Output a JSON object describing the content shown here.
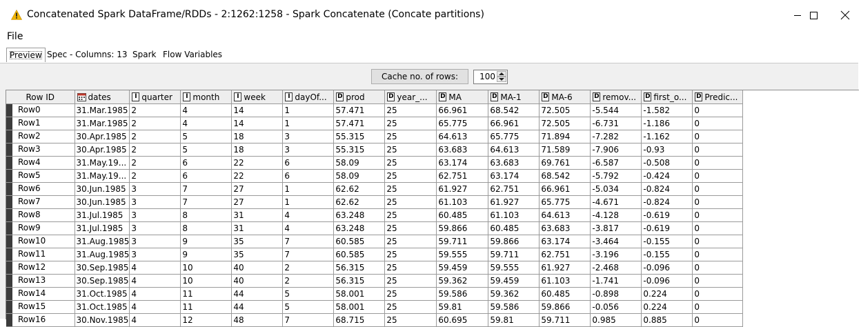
{
  "window": {
    "title": "Concatenated Spark DataFrame/RDDs - 2:1262:1258 - Spark Concatenate (Concate partitions)",
    "icon": "warning-icon",
    "warning_color": "#f0b400"
  },
  "menu": {
    "file": "File"
  },
  "tabs": [
    {
      "label": "Preview",
      "active": true
    },
    {
      "label": "Spec - Columns: 13",
      "active": false
    },
    {
      "label": "Spark",
      "active": false
    },
    {
      "label": "Flow Variables",
      "active": false
    }
  ],
  "cache": {
    "button_label": "Cache no. of rows:",
    "value": "100"
  },
  "table": {
    "columns": [
      {
        "label": "Row ID",
        "type": ""
      },
      {
        "label": "dates",
        "type": "cal"
      },
      {
        "label": "quarter",
        "type": "I"
      },
      {
        "label": "month",
        "type": "I"
      },
      {
        "label": "week",
        "type": "I"
      },
      {
        "label": "dayOf...",
        "type": "I"
      },
      {
        "label": "prod",
        "type": "D"
      },
      {
        "label": "year_...",
        "type": "D"
      },
      {
        "label": "MA",
        "type": "D"
      },
      {
        "label": "MA-1",
        "type": "D"
      },
      {
        "label": "MA-6",
        "type": "D"
      },
      {
        "label": "remov...",
        "type": "D"
      },
      {
        "label": "first_o...",
        "type": "D"
      },
      {
        "label": "Predic...",
        "type": "D"
      }
    ],
    "rows": [
      [
        "Row0",
        "31.Mar.1985",
        "2",
        "4",
        "14",
        "1",
        "57.471",
        "25",
        "66.961",
        "68.542",
        "72.505",
        "-5.544",
        "-1.582",
        "0"
      ],
      [
        "Row1",
        "31.Mar.1985",
        "2",
        "4",
        "14",
        "1",
        "57.471",
        "25",
        "65.775",
        "66.961",
        "72.505",
        "-6.731",
        "-1.186",
        "0"
      ],
      [
        "Row2",
        "30.Apr.1985",
        "2",
        "5",
        "18",
        "3",
        "55.315",
        "25",
        "64.613",
        "65.775",
        "71.894",
        "-7.282",
        "-1.162",
        "0"
      ],
      [
        "Row3",
        "30.Apr.1985",
        "2",
        "5",
        "18",
        "3",
        "55.315",
        "25",
        "63.683",
        "64.613",
        "71.589",
        "-7.906",
        "-0.93",
        "0"
      ],
      [
        "Row4",
        "31.May.19...",
        "2",
        "6",
        "22",
        "6",
        "58.09",
        "25",
        "63.174",
        "63.683",
        "69.761",
        "-6.587",
        "-0.508",
        "0"
      ],
      [
        "Row5",
        "31.May.19...",
        "2",
        "6",
        "22",
        "6",
        "58.09",
        "25",
        "62.751",
        "63.174",
        "68.542",
        "-5.792",
        "-0.424",
        "0"
      ],
      [
        "Row6",
        "30.Jun.1985",
        "3",
        "7",
        "27",
        "1",
        "62.62",
        "25",
        "61.927",
        "62.751",
        "66.961",
        "-5.034",
        "-0.824",
        "0"
      ],
      [
        "Row7",
        "30.Jun.1985",
        "3",
        "7",
        "27",
        "1",
        "62.62",
        "25",
        "61.103",
        "61.927",
        "65.775",
        "-4.671",
        "-0.824",
        "0"
      ],
      [
        "Row8",
        "31.Jul.1985",
        "3",
        "8",
        "31",
        "4",
        "63.248",
        "25",
        "60.485",
        "61.103",
        "64.613",
        "-4.128",
        "-0.619",
        "0"
      ],
      [
        "Row9",
        "31.Jul.1985",
        "3",
        "8",
        "31",
        "4",
        "63.248",
        "25",
        "59.866",
        "60.485",
        "63.683",
        "-3.817",
        "-0.619",
        "0"
      ],
      [
        "Row10",
        "31.Aug.1985",
        "3",
        "9",
        "35",
        "7",
        "60.585",
        "25",
        "59.711",
        "59.866",
        "63.174",
        "-3.464",
        "-0.155",
        "0"
      ],
      [
        "Row11",
        "31.Aug.1985",
        "3",
        "9",
        "35",
        "7",
        "60.585",
        "25",
        "59.555",
        "59.711",
        "62.751",
        "-3.196",
        "-0.155",
        "0"
      ],
      [
        "Row12",
        "30.Sep.1985",
        "4",
        "10",
        "40",
        "2",
        "56.315",
        "25",
        "59.459",
        "59.555",
        "61.927",
        "-2.468",
        "-0.096",
        "0"
      ],
      [
        "Row13",
        "30.Sep.1985",
        "4",
        "10",
        "40",
        "2",
        "56.315",
        "25",
        "59.362",
        "59.459",
        "61.103",
        "-1.741",
        "-0.096",
        "0"
      ],
      [
        "Row14",
        "31.Oct.1985",
        "4",
        "11",
        "44",
        "5",
        "58.001",
        "25",
        "59.586",
        "59.362",
        "60.485",
        "-0.898",
        "0.224",
        "0"
      ],
      [
        "Row15",
        "31.Oct.1985",
        "4",
        "11",
        "44",
        "5",
        "58.001",
        "25",
        "59.81",
        "59.586",
        "59.866",
        "-0.056",
        "0.224",
        "0"
      ],
      [
        "Row16",
        "30.Nov.1985",
        "4",
        "12",
        "48",
        "7",
        "68.715",
        "25",
        "60.695",
        "59.81",
        "59.711",
        "0.985",
        "0.885",
        "0"
      ]
    ]
  }
}
